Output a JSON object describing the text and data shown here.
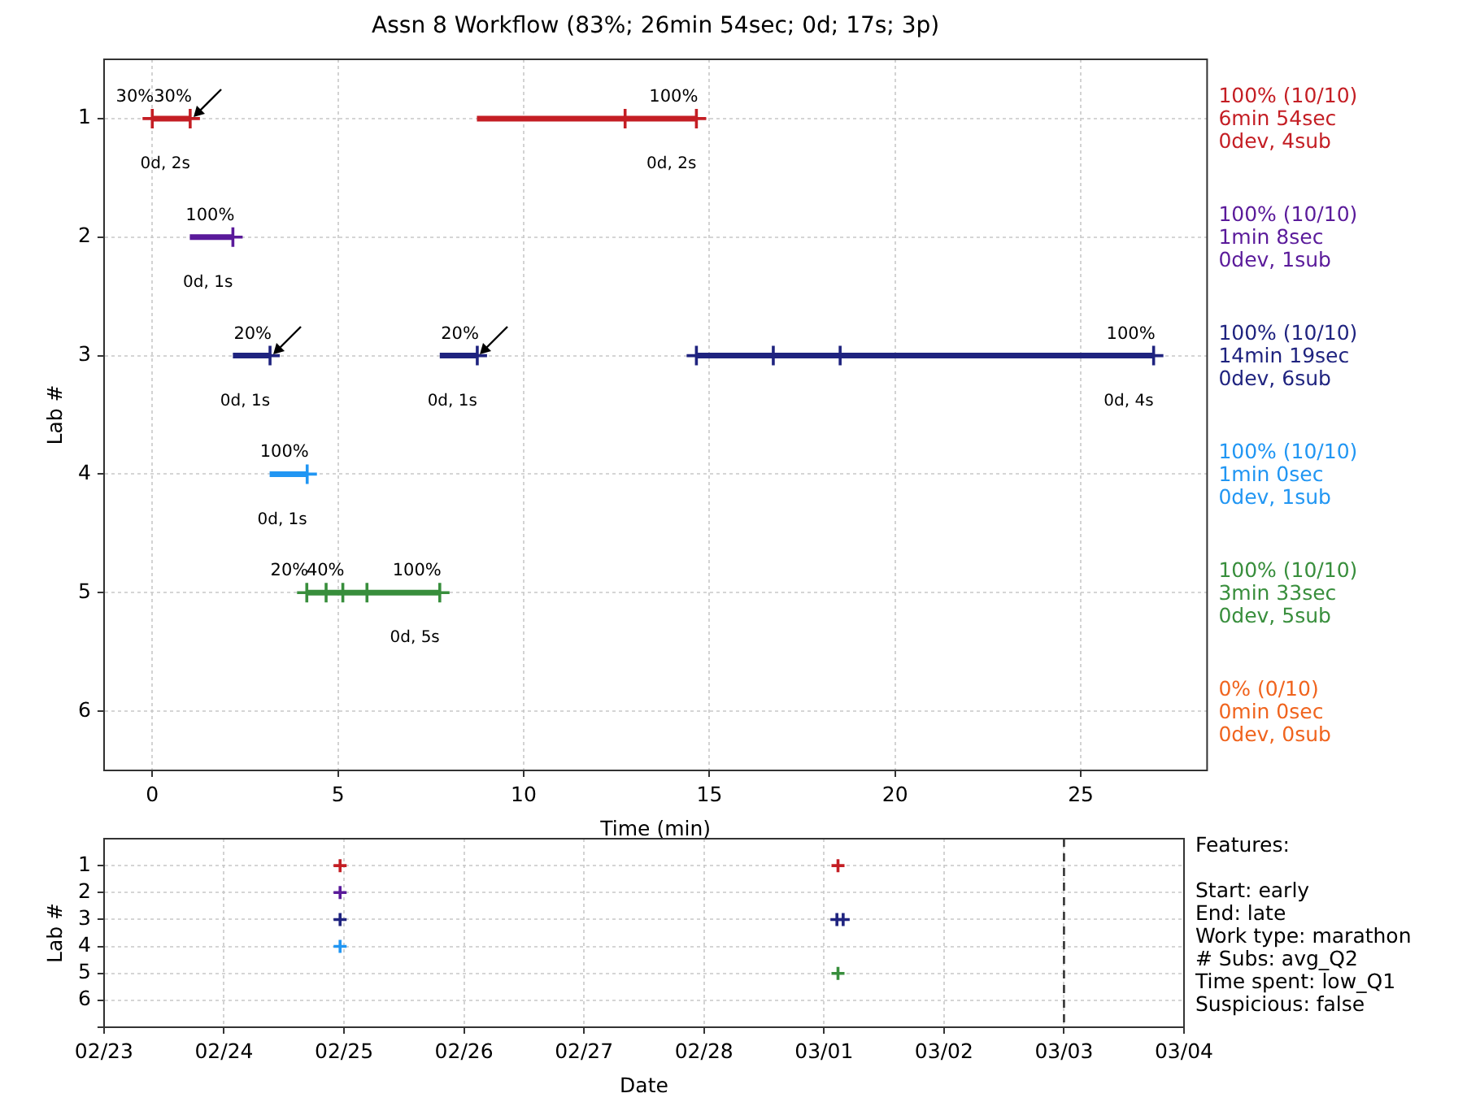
{
  "chart_data": [
    {
      "type": "line",
      "title": "Assn 8 Workflow (83%; 26min 54sec; 0d; 17s; 3p)",
      "xlabel": "Time (min)",
      "ylabel": "Lab #",
      "xlim": [
        -1.3,
        28.4
      ],
      "xticks": [
        0,
        5,
        10,
        15,
        20,
        25
      ],
      "ylim": [
        6.5,
        0.5
      ],
      "yticks": [
        1,
        2,
        3,
        4,
        5,
        6
      ],
      "grid": true,
      "series": [
        {
          "type": "line",
          "name": "100% (10/10)\n6min 54sec\n0dev, 4sub",
          "color": "#c41e24",
          "x": [
            0,
            1.02,
            null,
            8.74,
            14.65
          ],
          "values": [
            1,
            1,
            null,
            1,
            1
          ]
        },
        {
          "type": "scatter",
          "marker": "cross",
          "color": "#c41e24",
          "x": [
            0,
            1.02,
            12.73,
            14.65
          ],
          "values": [
            1,
            1,
            1,
            1
          ]
        },
        {
          "type": "line",
          "name": "100% (10/10)\n1min 8sec\n0dev, 1sub",
          "color": "#5a1a9a",
          "x": [
            1.01,
            2.17
          ],
          "values": [
            2,
            2
          ]
        },
        {
          "type": "scatter",
          "marker": "cross",
          "color": "#5a1a9a",
          "x": [
            2.17
          ],
          "values": [
            2
          ]
        },
        {
          "type": "line",
          "name": "100% (10/10)\n14min 19sec\n0dev, 6sub",
          "color": "#1f237f",
          "x": [
            2.17,
            3.17,
            null,
            7.74,
            8.75,
            null,
            14.65,
            26.96
          ],
          "values": [
            3,
            3,
            null,
            3,
            3,
            null,
            3,
            3
          ]
        },
        {
          "type": "scatter",
          "marker": "cross",
          "color": "#1f237f",
          "x": [
            3.17,
            8.75,
            14.65,
            16.72,
            18.52,
            26.96
          ],
          "values": [
            3,
            3,
            3,
            3,
            3,
            3
          ]
        },
        {
          "type": "line",
          "name": "100% (10/10)\n1min 0sec\n0dev, 1sub",
          "color": "#2196f3",
          "x": [
            3.16,
            4.17
          ],
          "values": [
            4,
            4
          ]
        },
        {
          "type": "scatter",
          "marker": "cross",
          "color": "#2196f3",
          "x": [
            4.17
          ],
          "values": [
            4
          ]
        },
        {
          "type": "line",
          "name": "100% (10/10)\n3min 33sec\n0dev, 5sub",
          "color": "#388e3c",
          "x": [
            4.16,
            7.74
          ],
          "values": [
            5,
            5
          ]
        },
        {
          "type": "scatter",
          "marker": "cross",
          "color": "#388e3c",
          "x": [
            4.16,
            4.68,
            5.13,
            5.78,
            7.74
          ],
          "values": [
            5,
            5,
            5,
            5,
            5
          ]
        },
        {
          "type": "line",
          "name": "0% (0/10)\n0min 0sec\n0dev, 0sub",
          "color": "#f0641e"
        }
      ],
      "annotations": [
        {
          "text": "30%",
          "x": 0,
          "y": 1
        },
        {
          "text": "30%",
          "x": 1.02,
          "y": 1
        },
        {
          "text": "100%",
          "x": 14.65,
          "y": 1
        },
        {
          "text": "100%",
          "x": 2.17,
          "y": 2
        },
        {
          "text": "20%",
          "x": 3.17,
          "y": 3
        },
        {
          "text": "20%",
          "x": 8.75,
          "y": 3
        },
        {
          "text": "100%",
          "x": 26.96,
          "y": 3
        },
        {
          "text": "100%",
          "x": 4.17,
          "y": 4
        },
        {
          "text": "20%",
          "x": 4.16,
          "y": 5
        },
        {
          "text": "40%",
          "x": 5.13,
          "y": 5
        },
        {
          "text": "100%",
          "x": 7.74,
          "y": 5
        },
        {
          "text": "0d, 2s",
          "x": 1.02,
          "y": 1
        },
        {
          "text": "0d, 2s",
          "x": 14.65,
          "y": 1
        },
        {
          "text": "0d, 1s",
          "x": 2.17,
          "y": 2
        },
        {
          "text": "0d, 1s",
          "x": 3.17,
          "y": 3
        },
        {
          "text": "0d, 1s",
          "x": 8.75,
          "y": 3
        },
        {
          "text": "0d, 4s",
          "x": 26.96,
          "y": 3
        },
        {
          "text": "0d, 1s",
          "x": 4.17,
          "y": 4
        },
        {
          "text": "0d, 5s",
          "x": 7.74,
          "y": 5
        }
      ]
    },
    {
      "type": "scatter",
      "xlabel": "Date",
      "ylabel": "Lab #",
      "xlim": [
        "--02-23",
        "--03-04"
      ],
      "xticks": [
        {
          "value": "--02-23",
          "label": "02/23"
        },
        {
          "value": "--02-24",
          "label": "02/24"
        },
        {
          "value": "--02-25",
          "label": "02/25"
        },
        {
          "value": "--02-26",
          "label": "02/26"
        },
        {
          "value": "--02-27",
          "label": "02/27"
        },
        {
          "value": "--02-28",
          "label": "02/28"
        },
        {
          "value": "--03-01",
          "label": "03/01"
        },
        {
          "value": "--03-02",
          "label": "03/02"
        },
        {
          "value": "--03-03",
          "label": "03/03"
        },
        {
          "value": "--03-04",
          "label": "03/04"
        }
      ],
      "ylim": [
        7,
        0
      ],
      "yticks": [
        1,
        2,
        3,
        4,
        5,
        6,
        {
          "value": 7,
          "label": null
        }
      ],
      "grid": true,
      "marker": "cross",
      "series": [
        {
          "color": "#c41e24",
          "x": [
            "--02-24T23:13",
            "--03-01T02:48"
          ],
          "values": [
            1,
            1
          ]
        },
        {
          "color": "#5a1a9a",
          "x": [
            "--02-24T23:13"
          ],
          "values": [
            2
          ]
        },
        {
          "color": "#1f237f",
          "x": [
            "--02-24T23:13",
            "--03-01T02:35",
            "--03-01T03:50"
          ],
          "values": [
            3,
            3,
            3
          ]
        },
        {
          "color": "#2196f3",
          "x": [
            "--02-24T23:13"
          ],
          "values": [
            4
          ]
        },
        {
          "color": "#388e3c",
          "x": [
            "--03-01T02:48"
          ],
          "values": [
            5
          ]
        }
      ],
      "ref_lines": [
        {
          "axis": "x",
          "value": "--03-03",
          "color": "#333333",
          "line_style": "dashed"
        }
      ],
      "annotations": [
        "Features:\n\nStart: early\nEnd: late\nWork type: marathon\n# Subs: avg_Q2\nTime spent: low_Q1\nSuspicious: false"
      ]
    }
  ]
}
